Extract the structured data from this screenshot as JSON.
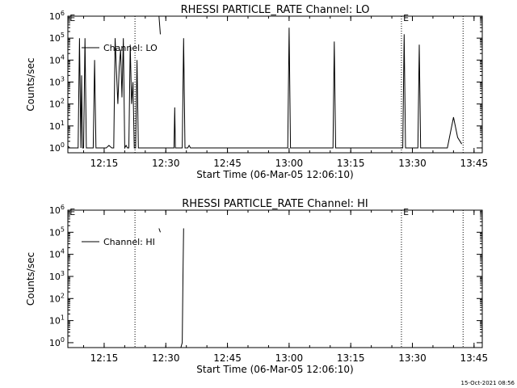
{
  "footer": {
    "timestamp": "15-Oct-2021 08:56"
  },
  "chart_data": [
    {
      "type": "line",
      "title": "RHESSI PARTICLE_RATE Channel: LO",
      "xlabel": "Start Time (06-Mar-05 12:06:10)",
      "ylabel": "Counts/sec",
      "xlim": [
        "12:06:10",
        "13:47:00"
      ],
      "ylim": [
        0.6,
        1000000
      ],
      "yscale": "log",
      "x_tick_labels": [
        "12:15",
        "12:30",
        "12:45",
        "13:00",
        "13:15",
        "13:30",
        "13:45"
      ],
      "y_tick_labels": [
        {
          "base": "10",
          "exp": "0",
          "value": 1
        },
        {
          "base": "10",
          "exp": "1",
          "value": 10
        },
        {
          "base": "10",
          "exp": "2",
          "value": 100
        },
        {
          "base": "10",
          "exp": "3",
          "value": 1000
        },
        {
          "base": "10",
          "exp": "4",
          "value": 10000
        },
        {
          "base": "10",
          "exp": "5",
          "value": 100000
        },
        {
          "base": "10",
          "exp": "6",
          "value": 1000000
        }
      ],
      "legend": {
        "label": "Channel: LO",
        "position": "top-left"
      },
      "vlines": [
        "12:22:30",
        "13:27:20",
        "13:42:20"
      ],
      "markers": [
        {
          "label": "E",
          "x": "12:06:30"
        },
        {
          "label": "E",
          "x": "13:27:40"
        }
      ],
      "grid": false,
      "series": [
        {
          "points": [
            [
              "12:06:10",
              1.2
            ],
            [
              "12:06:40",
              1.0
            ],
            [
              "12:08:40",
              1.0
            ],
            [
              "12:09:00",
              100000
            ],
            [
              "12:09:20",
              1.0
            ],
            [
              "12:09:30",
              2000
            ],
            [
              "12:09:45",
              1.0
            ],
            [
              "12:10:00",
              1.0
            ],
            [
              "12:10:20",
              100000
            ],
            [
              "12:10:40",
              1.0
            ],
            [
              "12:12:20",
              1.0
            ],
            [
              "12:12:40",
              10000
            ],
            [
              "12:13:00",
              1.0
            ],
            [
              "12:15:30",
              1.0
            ],
            [
              "12:16:10",
              1.3
            ],
            [
              "12:16:50",
              1.0
            ],
            [
              "12:17:20",
              1.0
            ],
            [
              "12:17:40",
              100000
            ],
            [
              "12:18:00",
              3000
            ],
            [
              "12:18:20",
              100
            ],
            [
              "12:18:40",
              5000
            ],
            [
              "12:19:00",
              30000
            ],
            [
              "12:19:20",
              200
            ],
            [
              "12:19:40",
              100000
            ],
            [
              "12:20:00",
              1.0
            ],
            [
              "12:20:20",
              1.3
            ],
            [
              "12:20:40",
              1.0
            ],
            [
              "12:21:00",
              1.0
            ],
            [
              "12:21:20",
              50000
            ],
            [
              "12:21:40",
              100
            ],
            [
              "12:22:00",
              1000
            ],
            [
              "12:22:20",
              1.0
            ],
            [
              "12:22:40",
              1.0
            ],
            [
              "12:23:00",
              10000
            ],
            [
              "12:23:20",
              1.0
            ],
            [
              "12:32:00",
              1.0
            ],
            [
              "12:32:10",
              70
            ],
            [
              "12:32:20",
              1.0
            ],
            [
              "12:34:00",
              1.0
            ],
            [
              "12:34:20",
              100000
            ],
            [
              "12:34:40",
              1.0
            ],
            [
              "12:35:20",
              1.0
            ],
            [
              "12:35:40",
              1.3
            ],
            [
              "12:36:00",
              1.0
            ],
            [
              "12:59:40",
              1.0
            ],
            [
              "13:00:00",
              300000
            ],
            [
              "13:00:20",
              1.0
            ],
            [
              "13:10:40",
              1.0
            ],
            [
              "13:11:00",
              70000
            ],
            [
              "13:11:20",
              1.0
            ],
            [
              "13:27:40",
              1.0
            ],
            [
              "13:28:00",
              150000
            ],
            [
              "13:28:20",
              1.0
            ],
            [
              "13:31:20",
              1.0
            ],
            [
              "13:31:40",
              50000
            ],
            [
              "13:32:00",
              1.0
            ],
            [
              "13:38:30",
              1.0
            ],
            [
              "13:40:00",
              25
            ],
            [
              "13:41:00",
              3
            ],
            [
              "13:42:00",
              1.5
            ]
          ]
        },
        {
          "points": [
            [
              "12:28:20",
              1000000
            ],
            [
              "12:28:40",
              150000
            ]
          ]
        }
      ]
    },
    {
      "type": "line",
      "title": "RHESSI PARTICLE_RATE Channel: HI",
      "xlabel": "Start Time (06-Mar-05 12:06:10)",
      "ylabel": "Counts/sec",
      "xlim": [
        "12:06:10",
        "13:47:00"
      ],
      "ylim": [
        0.6,
        1000000
      ],
      "yscale": "log",
      "x_tick_labels": [
        "12:15",
        "12:30",
        "12:45",
        "13:00",
        "13:15",
        "13:30",
        "13:45"
      ],
      "y_tick_labels": [
        {
          "base": "10",
          "exp": "0",
          "value": 1
        },
        {
          "base": "10",
          "exp": "1",
          "value": 10
        },
        {
          "base": "10",
          "exp": "2",
          "value": 100
        },
        {
          "base": "10",
          "exp": "3",
          "value": 1000
        },
        {
          "base": "10",
          "exp": "4",
          "value": 10000
        },
        {
          "base": "10",
          "exp": "5",
          "value": 100000
        },
        {
          "base": "10",
          "exp": "6",
          "value": 1000000
        }
      ],
      "legend": {
        "label": "Channel: HI",
        "position": "top-left"
      },
      "vlines": [
        "12:22:30",
        "13:27:20",
        "13:42:20"
      ],
      "markers": [
        {
          "label": "E",
          "x": "12:06:30"
        },
        {
          "label": "E",
          "x": "13:27:40"
        }
      ],
      "grid": false,
      "series": [
        {
          "points": [
            [
              "12:33:40",
              0.6
            ],
            [
              "12:34:00",
              1.0
            ],
            [
              "12:34:10",
              1000
            ],
            [
              "12:34:20",
              150000
            ]
          ]
        },
        {
          "points": [
            [
              "12:28:20",
              150000
            ],
            [
              "12:28:40",
              100000
            ]
          ]
        }
      ]
    }
  ]
}
